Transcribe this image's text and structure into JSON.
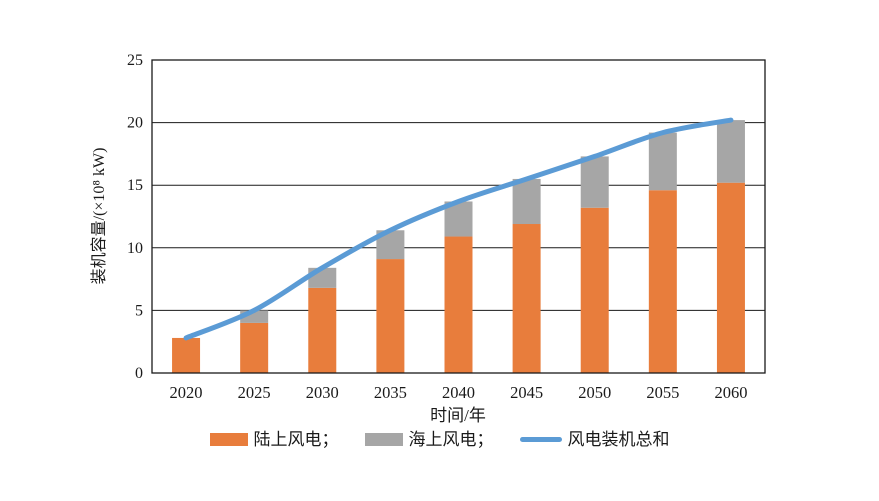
{
  "figure": {
    "background": "#ffffff",
    "frame_color": "#1a1a1a"
  },
  "chart_data": {
    "type": "bar",
    "subtype": "stacked-bars-with-total-line",
    "title": "",
    "categories": [
      "2020",
      "2025",
      "2030",
      "2035",
      "2040",
      "2045",
      "2050",
      "2055",
      "2060"
    ],
    "series": [
      {
        "name": "陆上风电",
        "type": "bar",
        "color": "#E87D3C",
        "values": [
          2.8,
          4.0,
          6.8,
          9.1,
          10.9,
          11.9,
          13.2,
          14.6,
          15.2
        ]
      },
      {
        "name": "海上风电",
        "type": "bar",
        "color": "#A6A6A6",
        "values": [
          0,
          1.0,
          1.6,
          2.3,
          2.8,
          3.6,
          4.1,
          4.6,
          5.0
        ]
      },
      {
        "name": "风电装机总和",
        "type": "line",
        "color": "#5B9BD5",
        "values": [
          2.8,
          5.0,
          8.4,
          11.4,
          13.7,
          15.5,
          17.3,
          19.2,
          20.2
        ]
      }
    ],
    "legend_labels": [
      "陆上风电；",
      "海上风电；",
      "风电装机总和"
    ],
    "xlabel": "时间/年",
    "ylabel": "装机容量/(×10⁸ kW)",
    "ylim": [
      0,
      25
    ],
    "yticks": [
      0,
      5,
      10,
      15,
      20,
      25
    ],
    "ytick_labels": [
      "0",
      "5",
      "10",
      "15",
      "20",
      "25"
    ],
    "grid": true,
    "legend_position": "bottom"
  }
}
